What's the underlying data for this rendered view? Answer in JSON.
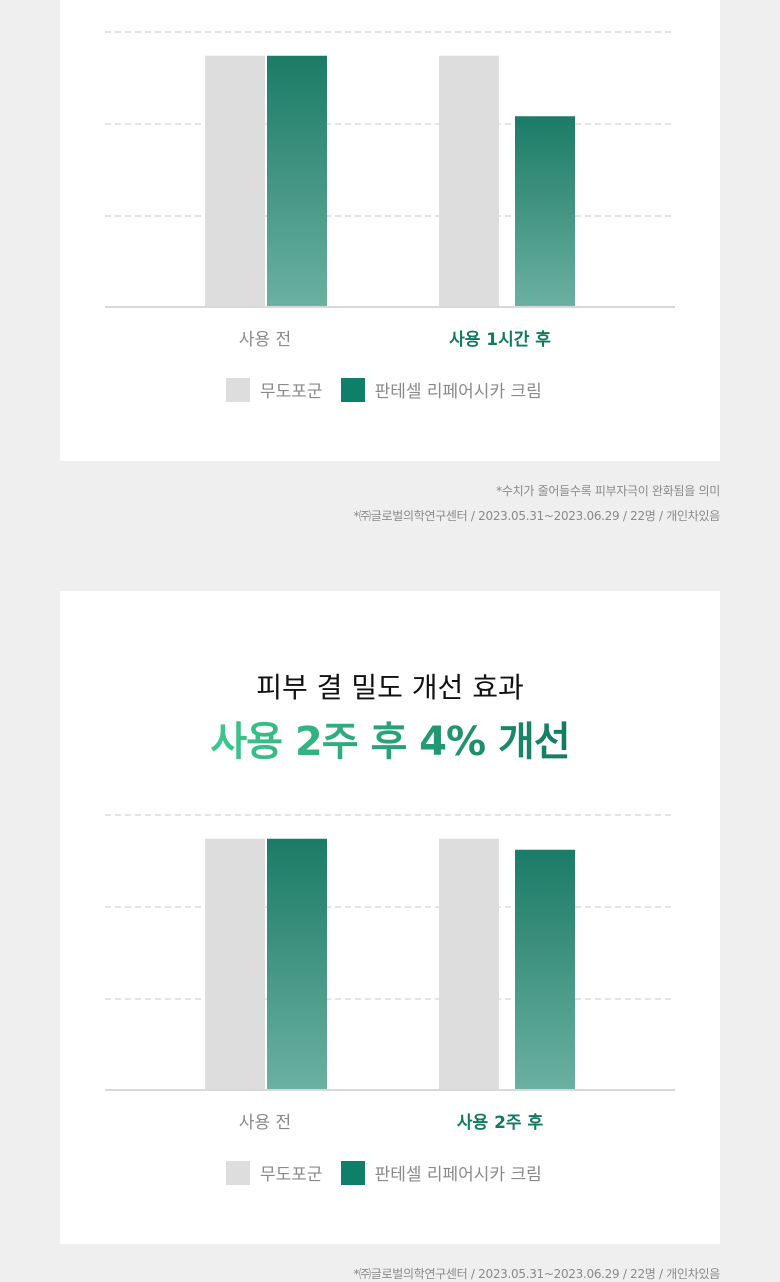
{
  "colors": {
    "control": "#dddddd",
    "product_top": "#1b7b66",
    "product_bottom": "#6bb0a0",
    "legend_product": "#0e7f68",
    "highlight": "#137a62"
  },
  "section1": {
    "legend": [
      "무도포군",
      "판테셀 리페어시카 크림"
    ],
    "notes": [
      "*수치가 줄어들수록 피부자극이 완화됨을 의미",
      "*㈜글로벌의학연구센터 / 2023.05.31~2023.06.29 / 22명 / 개인차있음"
    ]
  },
  "section2": {
    "title": "피부 결 밀도 개선 효과",
    "headline": "사용 2주 후 4% 개선",
    "legend": [
      "무도포군",
      "판테셀 리페어시카 크림"
    ],
    "notes": [
      "*㈜글로벌의학연구센터 / 2023.05.31~2023.06.29 / 22명 / 개인차있음"
    ]
  },
  "chart_data": [
    {
      "type": "bar",
      "categories": [
        "사용 전",
        "사용 1시간 후"
      ],
      "ylim": [
        0,
        100
      ],
      "grid": true,
      "series": [
        {
          "name": "무도포군",
          "values": [
            91,
            91
          ]
        },
        {
          "name": "판테셀 리페어시카 크림",
          "values": [
            91,
            69
          ]
        }
      ]
    },
    {
      "type": "bar",
      "categories": [
        "사용 전",
        "사용 2주 후"
      ],
      "ylim": [
        0,
        100
      ],
      "grid": true,
      "series": [
        {
          "name": "무도포군",
          "values": [
            91,
            91
          ]
        },
        {
          "name": "판테셀 리페어시카 크림",
          "values": [
            91,
            87
          ]
        }
      ]
    }
  ]
}
